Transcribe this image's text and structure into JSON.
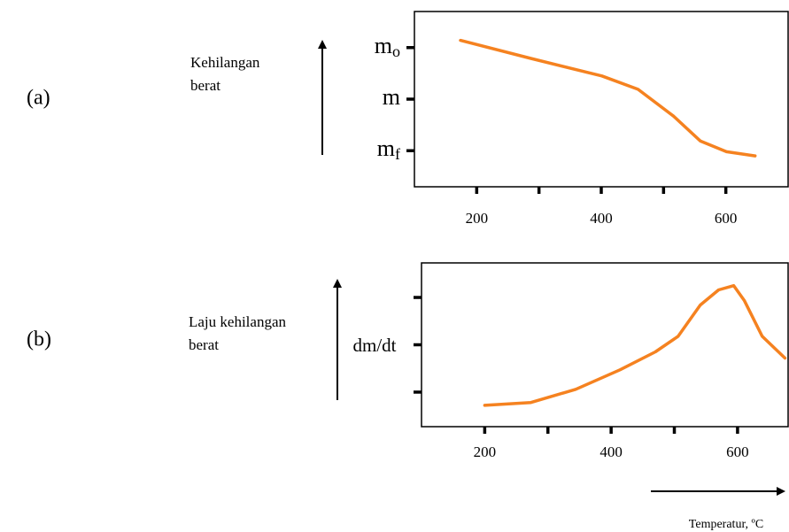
{
  "chart_data": [
    {
      "type": "line",
      "panel_label": "(a)",
      "ylabel_lines": [
        "Kehilangan",
        "berat"
      ],
      "x": [
        174,
        287,
        401,
        459,
        516,
        559,
        601,
        647
      ],
      "series": [
        {
          "color": "#f58220",
          "values": [
            3.14,
            2.79,
            2.45,
            2.19,
            1.67,
            1.19,
            0.98,
            0.9
          ]
        }
      ],
      "xlim": [
        100,
        700
      ],
      "xticks": [
        200,
        400,
        600
      ],
      "xminor": [
        300,
        500
      ],
      "ylim": [
        0.3,
        3.7
      ],
      "yticks": [
        {
          "value": 3,
          "label": "mo"
        },
        {
          "value": 2,
          "label": "m"
        },
        {
          "value": 1,
          "label": "mf"
        }
      ]
    },
    {
      "type": "line",
      "panel_label": "(b)",
      "ylabel_lines": [
        "Laju kehilangan",
        "berat"
      ],
      "yaxis_label": "dm/dt",
      "xlabel": "Temperatur, ºC",
      "x": [
        200,
        273,
        344,
        414,
        470,
        506,
        541,
        570,
        594,
        611,
        639,
        675
      ],
      "series": [
        {
          "color": "#f58220",
          "values": [
            0.72,
            0.78,
            1.06,
            1.47,
            1.85,
            2.18,
            2.84,
            3.16,
            3.25,
            2.93,
            2.18,
            1.72
          ]
        }
      ],
      "xlim": [
        100,
        680
      ],
      "xticks": [
        200,
        400,
        600
      ],
      "xminor": [
        300,
        500
      ],
      "ylim": [
        0.27,
        3.73
      ],
      "yminor": [
        1,
        2,
        3
      ]
    }
  ]
}
